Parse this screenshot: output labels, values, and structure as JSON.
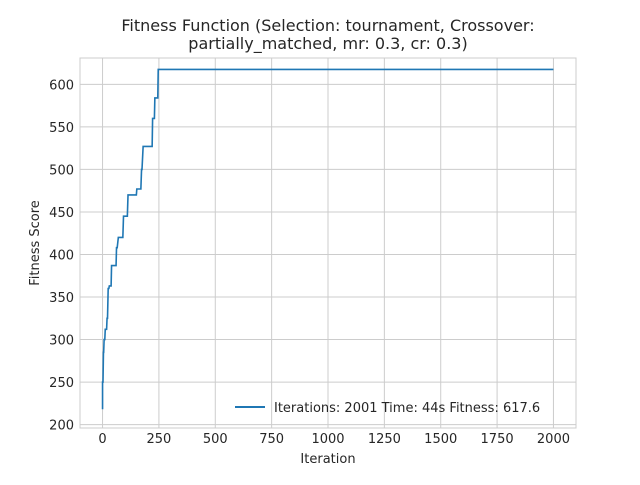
{
  "chart_data": {
    "type": "line",
    "title_line1": "Fitness Function (Selection: tournament, Crossover:",
    "title_line2": "partially_matched, mr: 0.3, cr: 0.3)",
    "xlabel": "Iteration",
    "ylabel": "Fitness Score",
    "xlim": [
      -100,
      2100
    ],
    "ylim": [
      196,
      631
    ],
    "x_ticks": [
      0,
      250,
      500,
      750,
      1000,
      1250,
      1500,
      1750,
      2000
    ],
    "y_ticks": [
      200,
      250,
      300,
      350,
      400,
      450,
      500,
      550,
      600
    ],
    "grid": true,
    "legend_position": "lower-right",
    "line_color": "#1f77b4",
    "series": [
      {
        "name": "Iterations: 2001 Time: 44s Fitness: 617.6",
        "x": [
          0,
          0,
          2,
          4,
          5,
          7,
          10,
          12,
          18,
          20,
          22,
          25,
          28,
          30,
          38,
          40,
          60,
          62,
          65,
          70,
          90,
          93,
          110,
          113,
          150,
          152,
          170,
          173,
          175,
          180,
          220,
          222,
          230,
          232,
          245,
          247,
          2000
        ],
        "y": [
          218,
          250,
          250,
          285,
          285,
          300,
          300,
          312,
          312,
          325,
          325,
          360,
          360,
          363,
          363,
          387,
          387,
          408,
          408,
          420,
          420,
          445,
          445,
          470,
          470,
          477,
          477,
          500,
          500,
          527,
          527,
          560,
          560,
          584,
          584,
          617.6,
          617.6
        ]
      }
    ]
  }
}
